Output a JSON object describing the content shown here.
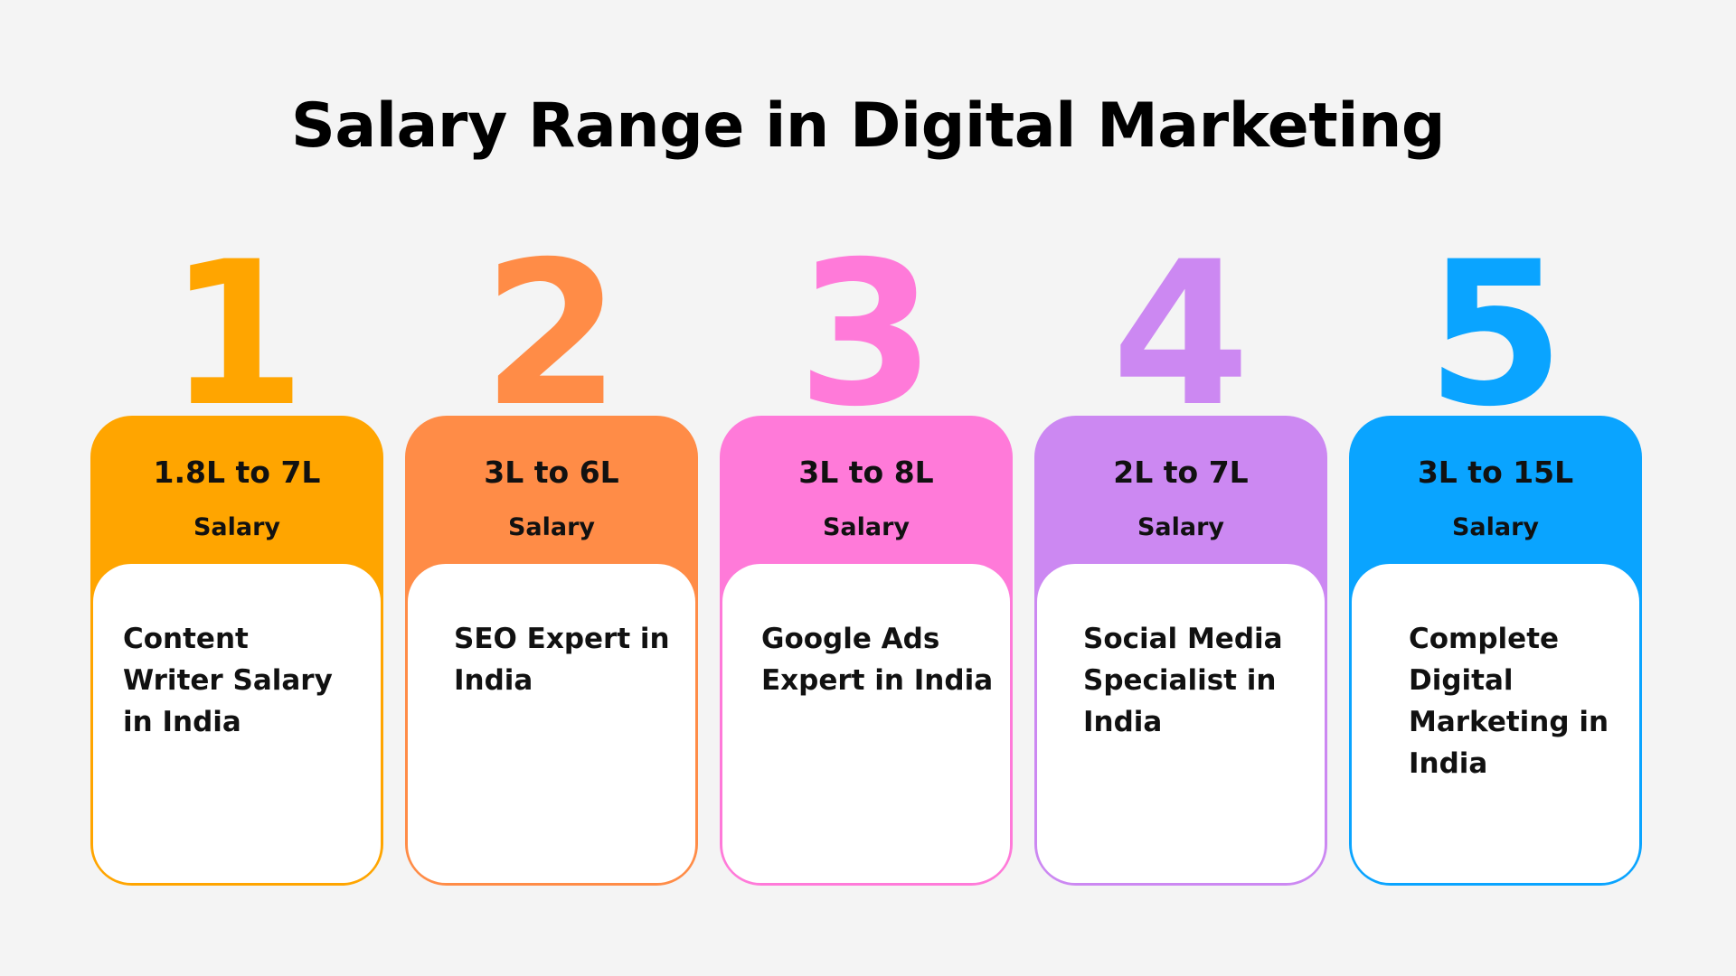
{
  "title": "Salary Range in Digital Marketing",
  "cards": [
    {
      "number": "1",
      "range": "1.8L to 7L",
      "label": "Salary",
      "role": "Content Writer Salary in India",
      "color": "#FFA500"
    },
    {
      "number": "2",
      "range": "3L to 6L",
      "label": "Salary",
      "role": "SEO Expert in India",
      "color": "#FF8C47"
    },
    {
      "number": "3",
      "range": "3L to 8L",
      "label": "Salary",
      "role": "Google Ads Expert in India",
      "color": "#FF7AD9"
    },
    {
      "number": "4",
      "range": "2L to 7L",
      "label": "Salary",
      "role": "Social Media Specialist in India",
      "color": "#CC88F2"
    },
    {
      "number": "5",
      "range": "3L to 15L",
      "label": "Salary",
      "role": "Complete Digital Marketing in India",
      "color": "#0AA4FF"
    }
  ]
}
